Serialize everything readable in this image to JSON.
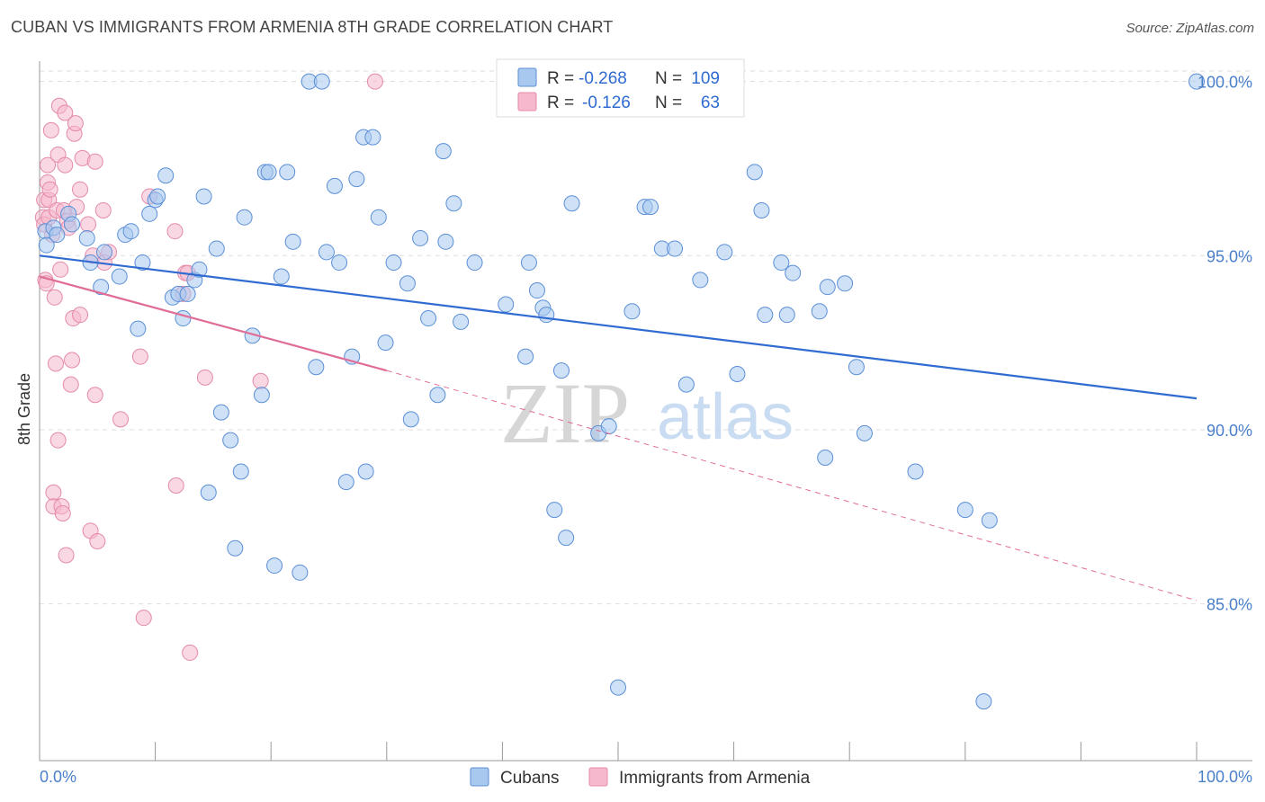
{
  "title": "CUBAN VS IMMIGRANTS FROM ARMENIA 8TH GRADE CORRELATION CHART",
  "source": "Source: ZipAtlas.com",
  "watermark": {
    "zip": "ZIP",
    "atlas": "atlas"
  },
  "colors": {
    "blue_fill": "#a8c8f0",
    "blue_stroke": "#5b8fd6",
    "blue_line": "#2f6bd1",
    "pink_fill": "#f6b8cc",
    "pink_stroke": "#e48aa8",
    "pink_line": "#e06d98",
    "axis_text": "#4a7fc9",
    "grid": "#dddddd"
  },
  "stats_legend": [
    {
      "r_label": "R =",
      "r_value": "-0.268",
      "n_label": "N =",
      "n_value": "109"
    },
    {
      "r_label": "R =",
      "r_value": "-0.126",
      "n_label": "N =",
      "n_value": "63"
    }
  ],
  "chart_data": {
    "type": "scatter",
    "title": "CUBAN VS IMMIGRANTS FROM ARMENIA 8TH GRADE CORRELATION CHART",
    "xlabel": "",
    "ylabel": "8th Grade",
    "x_tick_labels": [
      "0.0%",
      "100.0%"
    ],
    "y_tick_labels": [
      "100.0%",
      "95.0%",
      "90.0%",
      "85.0%"
    ],
    "y_ticks": [
      100,
      95,
      90,
      85
    ],
    "xlim": [
      0,
      100
    ],
    "ylim": [
      80.5,
      100.3
    ],
    "grid": true,
    "legend_position": "bottom-center",
    "series": [
      {
        "name": "Cubans",
        "trend": {
          "x": [
            0,
            100
          ],
          "y": [
            95.0,
            90.9
          ],
          "style": "solid"
        },
        "points": [
          [
            0.5,
            95.7
          ],
          [
            0.6,
            95.3
          ],
          [
            1.2,
            95.8
          ],
          [
            1.5,
            95.6
          ],
          [
            2.5,
            96.2
          ],
          [
            2.8,
            95.9
          ],
          [
            4.1,
            95.5
          ],
          [
            4.4,
            94.8
          ],
          [
            5.3,
            94.1
          ],
          [
            5.6,
            95.1
          ],
          [
            6.9,
            94.4
          ],
          [
            7.4,
            95.6
          ],
          [
            7.9,
            95.7
          ],
          [
            8.5,
            92.9
          ],
          [
            8.9,
            94.8
          ],
          [
            9.5,
            96.2
          ],
          [
            10.0,
            96.6
          ],
          [
            10.2,
            96.7
          ],
          [
            10.9,
            97.3
          ],
          [
            11.5,
            93.8
          ],
          [
            12.0,
            93.9
          ],
          [
            12.4,
            93.2
          ],
          [
            12.8,
            93.9
          ],
          [
            13.4,
            94.3
          ],
          [
            13.8,
            94.6
          ],
          [
            14.2,
            96.7
          ],
          [
            14.6,
            88.2
          ],
          [
            15.3,
            95.2
          ],
          [
            15.7,
            90.5
          ],
          [
            16.5,
            89.7
          ],
          [
            16.9,
            86.6
          ],
          [
            17.4,
            88.8
          ],
          [
            17.7,
            96.1
          ],
          [
            18.4,
            92.7
          ],
          [
            19.2,
            91.0
          ],
          [
            19.5,
            97.4
          ],
          [
            19.8,
            97.4
          ],
          [
            20.3,
            86.1
          ],
          [
            20.9,
            94.4
          ],
          [
            21.4,
            97.4
          ],
          [
            21.9,
            95.4
          ],
          [
            22.5,
            85.9
          ],
          [
            23.3,
            100.0
          ],
          [
            23.9,
            91.8
          ],
          [
            24.4,
            100.0
          ],
          [
            24.8,
            95.1
          ],
          [
            25.5,
            97.0
          ],
          [
            25.9,
            94.8
          ],
          [
            26.5,
            88.5
          ],
          [
            27.0,
            92.1
          ],
          [
            27.4,
            97.2
          ],
          [
            28.0,
            98.4
          ],
          [
            28.2,
            88.8
          ],
          [
            28.8,
            98.4
          ],
          [
            29.3,
            96.1
          ],
          [
            29.9,
            92.5
          ],
          [
            30.6,
            94.8
          ],
          [
            31.8,
            94.2
          ],
          [
            32.1,
            90.3
          ],
          [
            32.9,
            95.5
          ],
          [
            33.6,
            93.2
          ],
          [
            34.4,
            91.0
          ],
          [
            34.9,
            98.0
          ],
          [
            35.1,
            95.4
          ],
          [
            35.8,
            96.5
          ],
          [
            36.4,
            93.1
          ],
          [
            37.6,
            94.8
          ],
          [
            40.3,
            93.6
          ],
          [
            42.0,
            92.1
          ],
          [
            42.3,
            94.8
          ],
          [
            43.0,
            94.0
          ],
          [
            43.5,
            93.5
          ],
          [
            43.8,
            93.3
          ],
          [
            44.5,
            87.7
          ],
          [
            45.1,
            91.7
          ],
          [
            45.5,
            86.9
          ],
          [
            46.0,
            96.5
          ],
          [
            48.3,
            89.9
          ],
          [
            49.2,
            90.1
          ],
          [
            50.0,
            82.6
          ],
          [
            51.2,
            93.4
          ],
          [
            52.3,
            96.4
          ],
          [
            52.8,
            96.4
          ],
          [
            53.8,
            95.2
          ],
          [
            54.9,
            95.2
          ],
          [
            55.9,
            91.3
          ],
          [
            57.1,
            94.3
          ],
          [
            59.2,
            95.1
          ],
          [
            60.3,
            91.6
          ],
          [
            61.8,
            97.4
          ],
          [
            62.4,
            96.3
          ],
          [
            62.7,
            93.3
          ],
          [
            64.1,
            94.8
          ],
          [
            64.6,
            93.3
          ],
          [
            65.1,
            94.5
          ],
          [
            67.4,
            93.4
          ],
          [
            67.9,
            89.2
          ],
          [
            68.1,
            94.1
          ],
          [
            69.6,
            94.2
          ],
          [
            70.6,
            91.8
          ],
          [
            71.3,
            89.9
          ],
          [
            75.7,
            88.8
          ],
          [
            80.0,
            87.7
          ],
          [
            81.6,
            82.2
          ],
          [
            82.1,
            87.4
          ],
          [
            100.0,
            100.0
          ]
        ]
      },
      {
        "name": "Immigrants from Armenia",
        "trend": {
          "x": [
            0,
            30
          ],
          "y": [
            94.4,
            91.7
          ],
          "style": "solid"
        },
        "trend_extended": {
          "x": [
            30,
            100
          ],
          "y": [
            91.7,
            85.1
          ],
          "style": "dashed"
        },
        "points": [
          [
            0.3,
            96.1
          ],
          [
            0.4,
            95.9
          ],
          [
            0.4,
            96.6
          ],
          [
            0.5,
            94.3
          ],
          [
            0.6,
            94.2
          ],
          [
            0.7,
            97.1
          ],
          [
            0.7,
            97.6
          ],
          [
            0.8,
            96.6
          ],
          [
            0.8,
            96.1
          ],
          [
            0.9,
            96.9
          ],
          [
            1.0,
            98.6
          ],
          [
            1.1,
            95.6
          ],
          [
            1.2,
            88.2
          ],
          [
            1.2,
            87.8
          ],
          [
            1.3,
            93.8
          ],
          [
            1.4,
            91.9
          ],
          [
            1.5,
            96.3
          ],
          [
            1.6,
            97.9
          ],
          [
            1.6,
            89.7
          ],
          [
            1.7,
            99.3
          ],
          [
            1.8,
            94.6
          ],
          [
            1.9,
            87.8
          ],
          [
            2.0,
            87.6
          ],
          [
            2.1,
            96.3
          ],
          [
            2.2,
            97.6
          ],
          [
            2.2,
            99.1
          ],
          [
            2.3,
            86.4
          ],
          [
            2.4,
            96.0
          ],
          [
            2.5,
            95.8
          ],
          [
            2.7,
            91.3
          ],
          [
            2.8,
            92.0
          ],
          [
            2.9,
            93.2
          ],
          [
            3.0,
            98.5
          ],
          [
            3.1,
            98.8
          ],
          [
            3.2,
            96.4
          ],
          [
            3.5,
            93.3
          ],
          [
            3.5,
            96.9
          ],
          [
            3.7,
            97.8
          ],
          [
            4.2,
            95.9
          ],
          [
            4.4,
            87.1
          ],
          [
            4.6,
            95.0
          ],
          [
            4.8,
            97.7
          ],
          [
            4.8,
            91.0
          ],
          [
            5.0,
            86.8
          ],
          [
            5.5,
            96.3
          ],
          [
            5.6,
            94.8
          ],
          [
            6.0,
            95.1
          ],
          [
            7.0,
            90.3
          ],
          [
            8.7,
            92.1
          ],
          [
            9.0,
            84.6
          ],
          [
            9.5,
            96.7
          ],
          [
            11.7,
            95.7
          ],
          [
            11.8,
            88.4
          ],
          [
            12.4,
            93.9
          ],
          [
            12.6,
            94.5
          ],
          [
            12.8,
            94.5
          ],
          [
            13.0,
            83.6
          ],
          [
            14.3,
            91.5
          ],
          [
            19.1,
            91.4
          ],
          [
            29.0,
            100.0
          ]
        ]
      }
    ]
  }
}
